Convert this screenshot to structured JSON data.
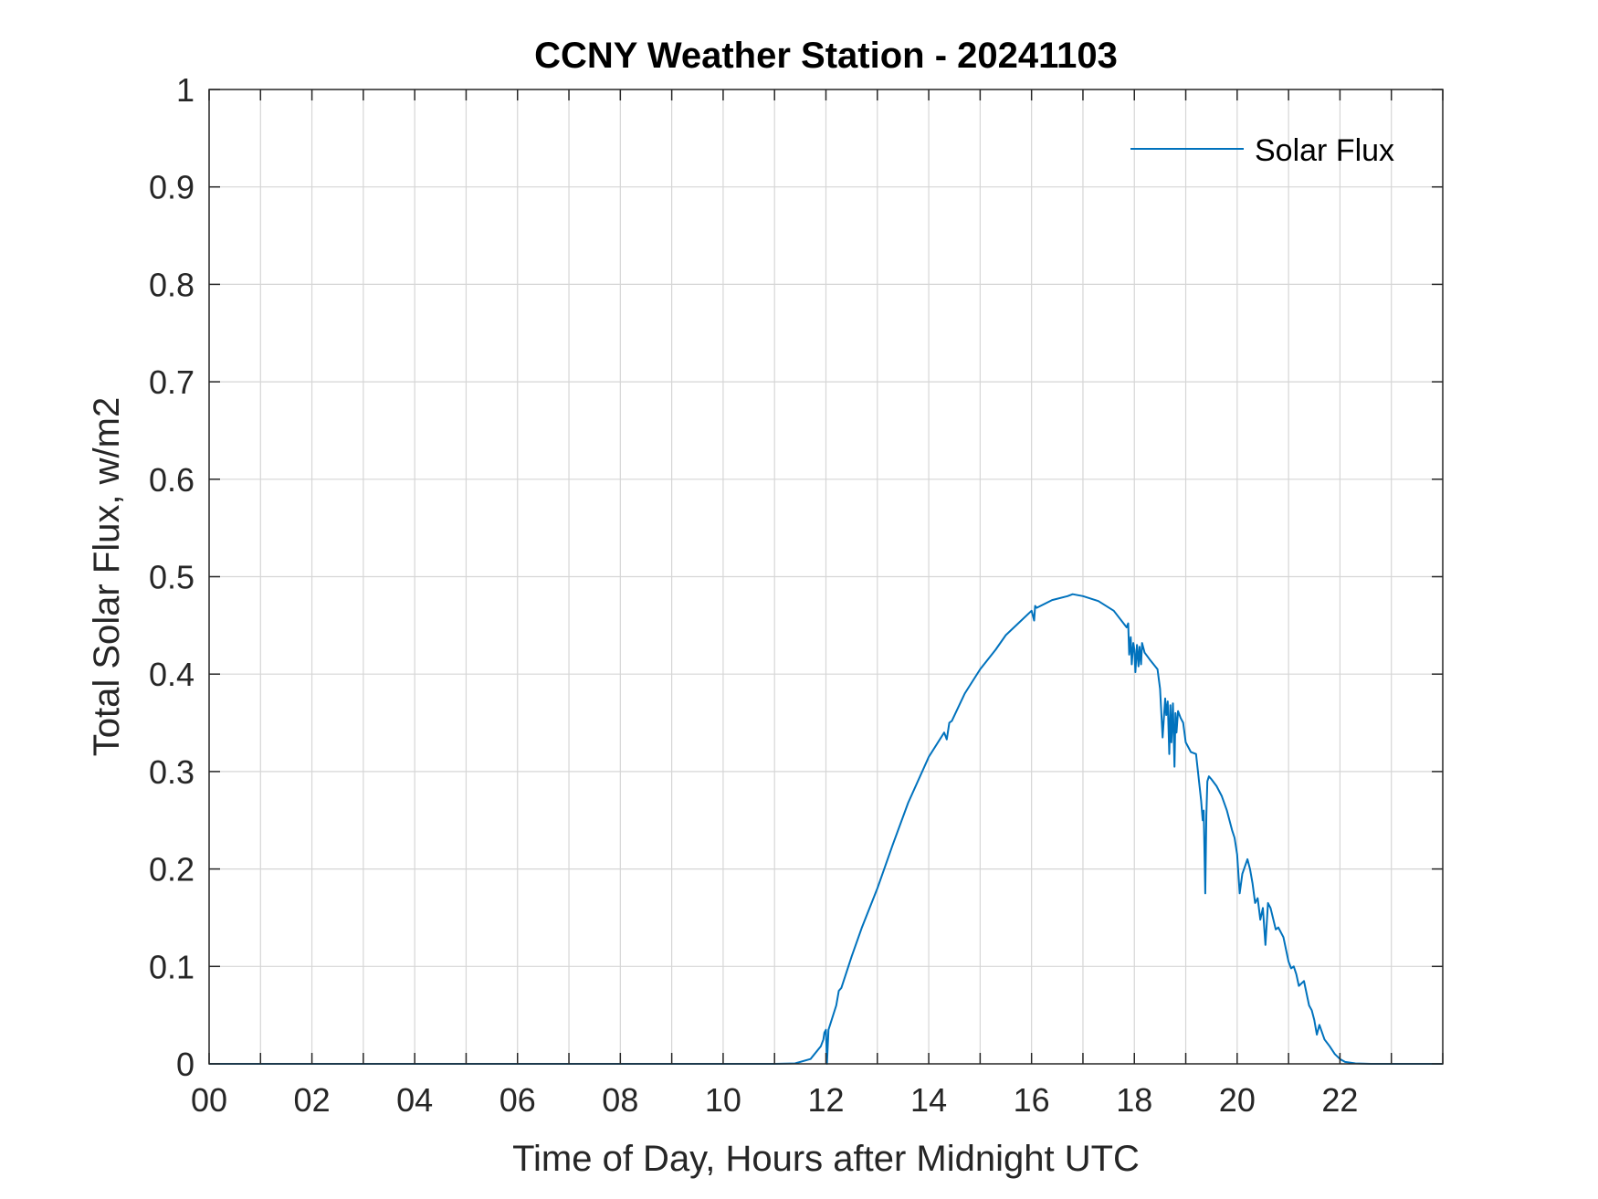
{
  "chart_data": {
    "type": "line",
    "title": "CCNY Weather Station - 20241103",
    "xlabel": "Time of Day, Hours after Midnight UTC",
    "ylabel": "Total Solar Flux, w/m2",
    "xlim": [
      0,
      24
    ],
    "ylim": [
      0,
      1
    ],
    "grid": true,
    "legend_position": "top-right",
    "x_tick_labels": [
      "00",
      "02",
      "04",
      "06",
      "08",
      "10",
      "12",
      "14",
      "16",
      "18",
      "20",
      "22"
    ],
    "y_tick_labels": [
      "0",
      "0.1",
      "0.2",
      "0.3",
      "0.4",
      "0.5",
      "0.6",
      "0.7",
      "0.8",
      "0.9",
      "1"
    ],
    "series": [
      {
        "name": "Solar Flux",
        "color": "#0072BD",
        "x": [
          0,
          11.0,
          11.4,
          11.7,
          11.9,
          11.95,
          11.97,
          12.0,
          12.02,
          12.05,
          12.2,
          12.25,
          12.3,
          12.5,
          12.7,
          13.0,
          13.3,
          13.6,
          14.0,
          14.3,
          14.35,
          14.4,
          14.45,
          14.7,
          15.0,
          15.3,
          15.5,
          15.8,
          16.0,
          16.05,
          16.07,
          16.1,
          16.4,
          16.7,
          16.8,
          17.0,
          17.3,
          17.6,
          17.85,
          17.88,
          17.9,
          17.93,
          17.95,
          17.98,
          18.0,
          18.02,
          18.05,
          18.08,
          18.1,
          18.13,
          18.15,
          18.2,
          18.3,
          18.45,
          18.5,
          18.55,
          18.6,
          18.62,
          18.65,
          18.68,
          18.7,
          18.72,
          18.75,
          18.78,
          18.8,
          18.82,
          18.85,
          18.9,
          18.95,
          19.0,
          19.1,
          19.2,
          19.3,
          19.33,
          19.35,
          19.38,
          19.4,
          19.42,
          19.45,
          19.5,
          19.6,
          19.7,
          19.8,
          19.9,
          19.95,
          20.0,
          20.05,
          20.1,
          20.2,
          20.25,
          20.3,
          20.35,
          20.4,
          20.45,
          20.5,
          20.55,
          20.6,
          20.65,
          20.75,
          20.8,
          20.9,
          21.0,
          21.05,
          21.1,
          21.15,
          21.2,
          21.3,
          21.4,
          21.45,
          21.5,
          21.55,
          21.6,
          21.7,
          21.8,
          21.9,
          22.0,
          22.1,
          22.3,
          22.6,
          23.0,
          24.0
        ],
        "y": [
          0,
          0,
          0.0005,
          0.005,
          0.018,
          0.025,
          0.032,
          0.035,
          0,
          0.035,
          0.06,
          0.075,
          0.078,
          0.11,
          0.14,
          0.18,
          0.225,
          0.268,
          0.315,
          0.34,
          0.333,
          0.35,
          0.352,
          0.38,
          0.405,
          0.425,
          0.44,
          0.455,
          0.465,
          0.455,
          0.47,
          0.468,
          0.476,
          0.48,
          0.482,
          0.48,
          0.475,
          0.465,
          0.448,
          0.452,
          0.42,
          0.438,
          0.41,
          0.432,
          0.425,
          0.402,
          0.43,
          0.408,
          0.428,
          0.41,
          0.432,
          0.422,
          0.415,
          0.405,
          0.385,
          0.335,
          0.375,
          0.358,
          0.372,
          0.318,
          0.368,
          0.33,
          0.37,
          0.305,
          0.36,
          0.34,
          0.362,
          0.355,
          0.35,
          0.33,
          0.32,
          0.318,
          0.27,
          0.25,
          0.26,
          0.175,
          0.255,
          0.29,
          0.295,
          0.292,
          0.285,
          0.275,
          0.26,
          0.24,
          0.232,
          0.215,
          0.175,
          0.195,
          0.21,
          0.2,
          0.185,
          0.165,
          0.17,
          0.148,
          0.16,
          0.122,
          0.165,
          0.16,
          0.138,
          0.14,
          0.13,
          0.105,
          0.098,
          0.1,
          0.092,
          0.08,
          0.085,
          0.06,
          0.055,
          0.045,
          0.03,
          0.04,
          0.025,
          0.018,
          0.01,
          0.005,
          0.002,
          0.0005,
          0,
          0,
          0
        ]
      }
    ]
  }
}
